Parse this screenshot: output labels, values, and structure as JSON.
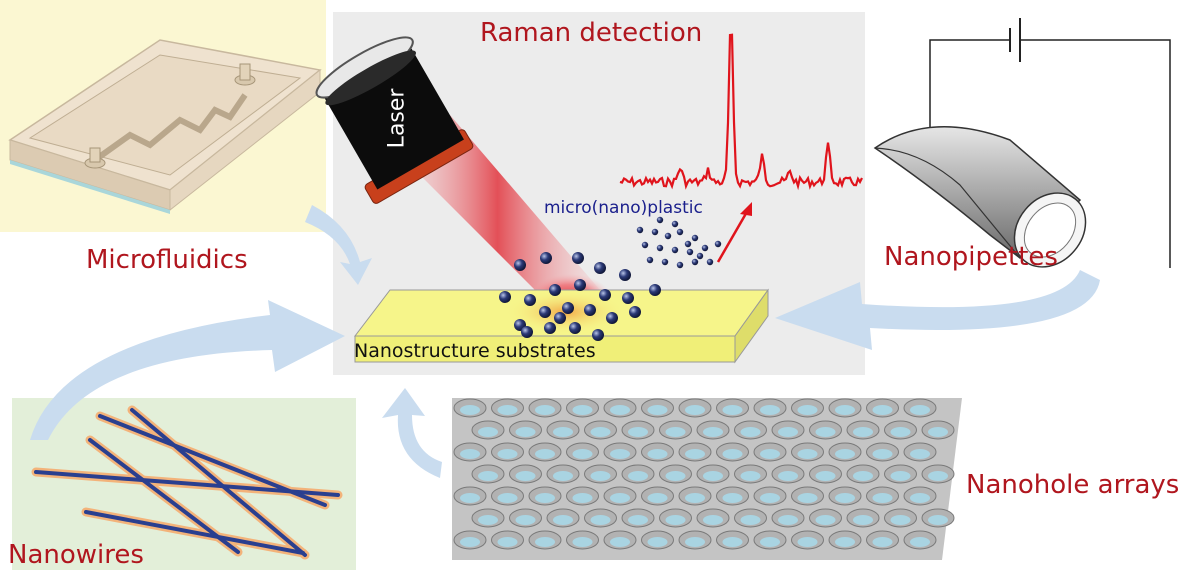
{
  "labels": {
    "raman": "Raman detection",
    "microfluidics": "Microfluidics",
    "nanopipettes": "Nanopipettes",
    "nanohole": "Nanohole arrays",
    "nanowires": "Nanowires",
    "plastic": "micro(nano)plastic",
    "substrate": "Nanostructure substrates",
    "laser": "Laser"
  },
  "colors": {
    "label_red": "#b0161e",
    "plastic_blue": "#1a1f8c",
    "arrow_blue": "#c9dcef",
    "spectrum_red": "#e0141c",
    "substrate_yellow": "#f6f58a"
  }
}
